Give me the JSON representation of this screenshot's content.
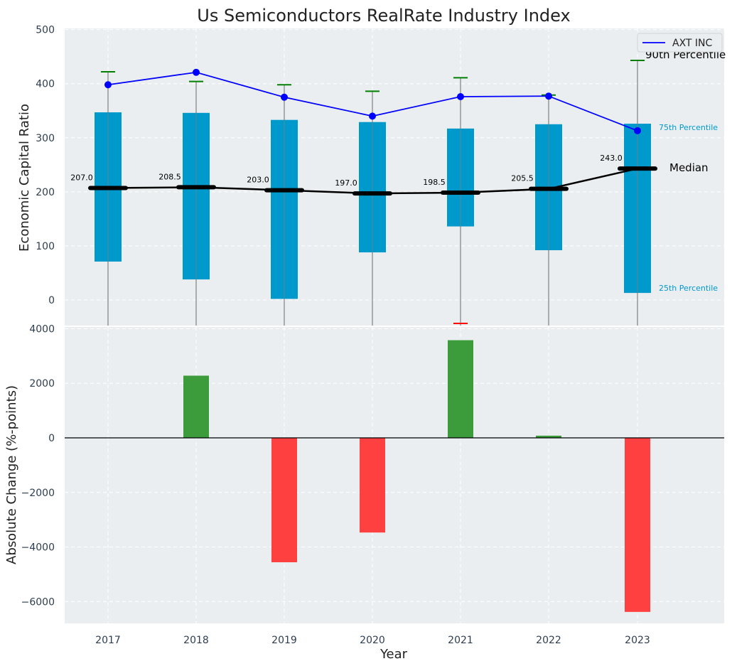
{
  "chart_data": [
    {
      "type": "box",
      "title": "Us Semiconductors RealRate Industry Index",
      "xlabel": "",
      "ylabel": "Economic Capital Ratio",
      "ylim": [
        -50,
        500
      ],
      "yticks": [
        "0",
        "100",
        "200",
        "300",
        "400",
        "500"
      ],
      "categories": [
        "2017",
        "2018",
        "2019",
        "2020",
        "2021",
        "2022",
        "2023"
      ],
      "grid": true,
      "legend_position": "top-right",
      "series": [
        {
          "name": "AXT INC",
          "values": [
            398,
            421,
            375,
            340,
            376,
            377,
            313
          ],
          "color": "#0000ff"
        }
      ],
      "p25": [
        71,
        38,
        2,
        88,
        136,
        92,
        13
      ],
      "p75": [
        347,
        346,
        333,
        329,
        317,
        325,
        326
      ],
      "p90": [
        422,
        404,
        398,
        386,
        411,
        379,
        443
      ],
      "medians": [
        207.0,
        208.5,
        203.0,
        197.0,
        198.5,
        205.5,
        243.0
      ],
      "median_labels": [
        "207.0",
        "208.5",
        "203.0",
        "197.0",
        "198.5",
        "205.5",
        "243.0"
      ],
      "annotations": {
        "p90": "90th Percentile",
        "p75": "75th Percentile",
        "median": "Median",
        "p25": "25th Percentile"
      },
      "colors": {
        "box": "#0099cc",
        "median": "#000000",
        "p90_cap": "#008000",
        "low_cap": "#ff0000",
        "whisker": "#808080"
      }
    },
    {
      "type": "bar",
      "title": "",
      "xlabel": "Year",
      "ylabel": "Absolute Change (%-points)",
      "ylim": [
        -6800,
        4000
      ],
      "yticks": [
        "−6000",
        "−4000",
        "−2000",
        "0",
        "2000",
        "4000"
      ],
      "categories": [
        "2017",
        "2018",
        "2019",
        "2020",
        "2021",
        "2022",
        "2023"
      ],
      "values": [
        0,
        2280,
        -4560,
        -3470,
        3580,
        80,
        -6380
      ],
      "colors": {
        "positive": "#3c9c3c",
        "negative": "#ff4040"
      },
      "grid": true
    }
  ]
}
